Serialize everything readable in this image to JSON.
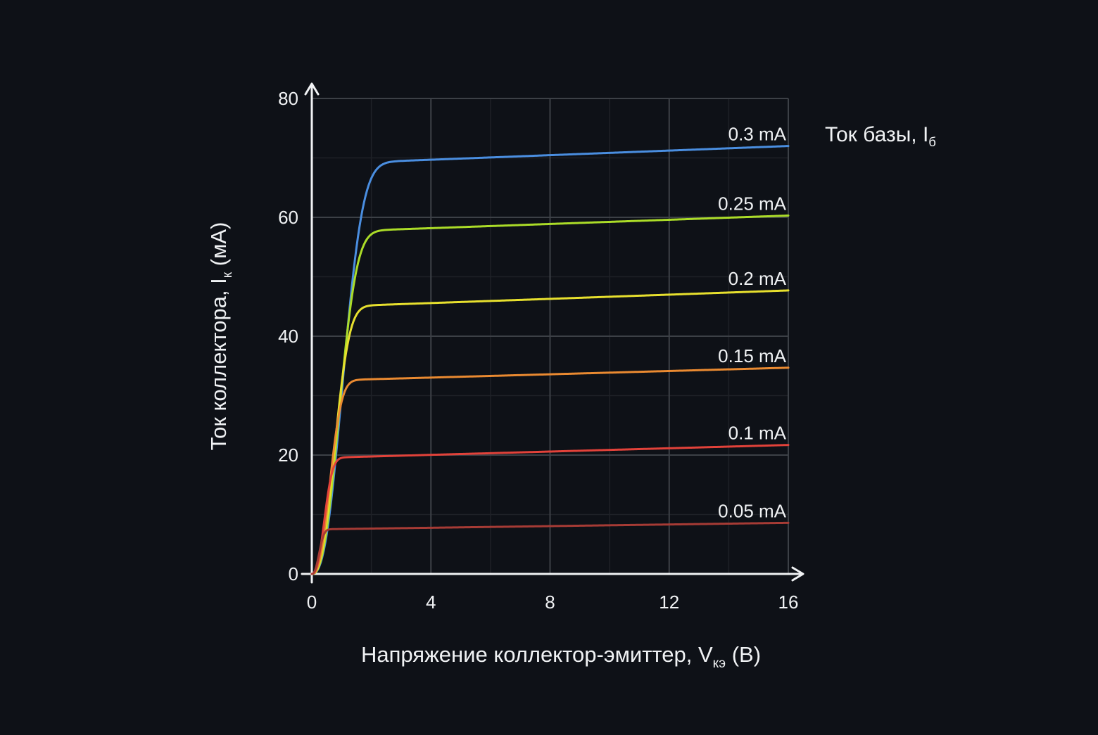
{
  "theme": {
    "background": "#0e1117",
    "text_color": "#f0f2f4",
    "axis_color": "#f0f2f4",
    "grid_major_color": "#3c4046",
    "grid_minor_color": "#1e2127"
  },
  "chart_data": {
    "type": "line",
    "title": "",
    "xlabel_parts": {
      "pre": "Напряжение коллектор-эмиттер, V",
      "sub": "кэ",
      "post": " (В)"
    },
    "ylabel_parts": {
      "pre": "Ток коллектора, I",
      "sub": "к",
      "post": " (мА)"
    },
    "legend_title_parts": {
      "pre": "Ток базы, I",
      "sub": "б",
      "post": ""
    },
    "legend_position": "top-right-outside",
    "grid": true,
    "x_axis": {
      "range": [
        0,
        16
      ],
      "ticks": [
        0,
        4,
        8,
        12,
        16
      ],
      "minor_gridlines": [
        2,
        6,
        10,
        14
      ]
    },
    "y_axis": {
      "range": [
        0,
        80
      ],
      "ticks": [
        0,
        20,
        40,
        60,
        80
      ],
      "minor_gridlines": [
        10,
        30,
        50,
        70
      ]
    },
    "curve_model": {
      "rise_exponent": 2.5,
      "sat_reference_voltage": 3,
      "end_voltage": 16
    },
    "series": [
      {
        "label": "0.3 mA",
        "base_current_mA": 0.3,
        "color": "#4a8ee0",
        "i_sat_mA": 69.5,
        "i_at_16V_mA": 72.0,
        "knee_scale": 1.25,
        "points": [
          [
            0,
            0
          ],
          [
            0.5,
            6.6
          ],
          [
            1,
            30.1
          ],
          [
            1.5,
            54.9
          ],
          [
            2,
            66.6
          ],
          [
            3,
            69.5
          ],
          [
            4,
            69.7
          ],
          [
            8,
            70.5
          ],
          [
            12,
            71.2
          ],
          [
            16,
            72.0
          ]
        ]
      },
      {
        "label": "0.25 mA",
        "base_current_mA": 0.25,
        "color": "#abdc28",
        "i_sat_mA": 58.0,
        "i_at_16V_mA": 60.3,
        "knee_scale": 1.1,
        "points": [
          [
            0,
            0
          ],
          [
            0.5,
            7.5
          ],
          [
            1,
            31.4
          ],
          [
            1.5,
            51.2
          ],
          [
            2,
            57.2
          ],
          [
            3,
            58.0
          ],
          [
            4,
            58.2
          ],
          [
            8,
            58.9
          ],
          [
            12,
            59.6
          ],
          [
            16,
            60.3
          ]
        ]
      },
      {
        "label": "0.2 mA",
        "base_current_mA": 0.2,
        "color": "#e7e02e",
        "i_sat_mA": 45.4,
        "i_at_16V_mA": 47.7,
        "knee_scale": 0.92,
        "points": [
          [
            0,
            0
          ],
          [
            0.5,
            8.8
          ],
          [
            1,
            31.9
          ],
          [
            1.5,
            43.6
          ],
          [
            2,
            45.2
          ],
          [
            3,
            45.4
          ],
          [
            4,
            45.6
          ],
          [
            8,
            46.3
          ],
          [
            12,
            47.0
          ],
          [
            16,
            47.7
          ]
        ]
      },
      {
        "label": "0.15 mA",
        "base_current_mA": 0.15,
        "color": "#ea8a31",
        "i_sat_mA": 32.9,
        "i_at_16V_mA": 34.7,
        "knee_scale": 0.73,
        "points": [
          [
            0,
            0
          ],
          [
            0.5,
            10.5
          ],
          [
            1,
            29.0
          ],
          [
            1.5,
            32.6
          ],
          [
            2,
            32.8
          ],
          [
            3,
            32.9
          ],
          [
            4,
            33.0
          ],
          [
            8,
            33.6
          ],
          [
            12,
            34.1
          ],
          [
            16,
            34.7
          ]
        ]
      },
      {
        "label": "0.1 mA",
        "base_current_mA": 0.1,
        "color": "#e2423a",
        "i_sat_mA": 19.9,
        "i_at_16V_mA": 21.7,
        "knee_scale": 0.51,
        "points": [
          [
            0,
            0
          ],
          [
            0.5,
            12.0
          ],
          [
            1,
            19.5
          ],
          [
            1.5,
            19.8
          ],
          [
            2,
            19.8
          ],
          [
            3,
            19.9
          ],
          [
            4,
            20.0
          ],
          [
            8,
            20.6
          ],
          [
            12,
            21.1
          ],
          [
            16,
            21.7
          ]
        ]
      },
      {
        "label": "0.05 mA",
        "base_current_mA": 0.05,
        "color": "#a63b35",
        "i_sat_mA": 7.7,
        "i_at_16V_mA": 8.6,
        "knee_scale": 0.3,
        "points": [
          [
            0,
            0
          ],
          [
            0.5,
            7.3
          ],
          [
            1,
            7.6
          ],
          [
            1.5,
            7.6
          ],
          [
            2,
            7.6
          ],
          [
            3,
            7.7
          ],
          [
            4,
            7.8
          ],
          [
            8,
            8.1
          ],
          [
            12,
            8.3
          ],
          [
            16,
            8.6
          ]
        ]
      }
    ]
  }
}
